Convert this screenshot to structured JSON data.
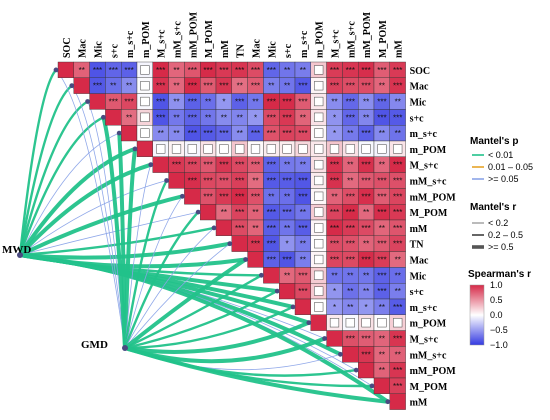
{
  "chart_data": {
    "type": "heatmap",
    "variables": [
      "SOC",
      "Mac",
      "Mic",
      "s+c",
      "m_s+c",
      "m_POM",
      "M_s+c",
      "mM_s+c",
      "mM_POM",
      "M_POM",
      "mM",
      "TN",
      "Mac",
      "Mic",
      "s+c",
      "m_s+c",
      "m_POM",
      "M_s+c",
      "mM_s+c",
      "mM_POM",
      "M_POM",
      "mM"
    ],
    "correlation_scale": {
      "min": -1.0,
      "max": 1.0
    },
    "mantel_sources": [
      "MWD",
      "GMD"
    ],
    "legend": {
      "mantel_p": {
        "title": "Mantel's p",
        "items": [
          "< 0.01",
          "0.01 – 0.05",
          ">= 0.05"
        ],
        "colors": [
          "#22c28a",
          "#e6a32a",
          "#8aa3e8"
        ]
      },
      "mantel_r": {
        "title": "Mantel's r",
        "items": [
          "< 0.2",
          "0.2 – 0.5",
          ">= 0.5"
        ]
      },
      "spearman": {
        "title": "Spearman's r",
        "ticks": [
          "1.0",
          "0.5",
          "0.0",
          "−0.5",
          "−1.0"
        ]
      }
    }
  }
}
